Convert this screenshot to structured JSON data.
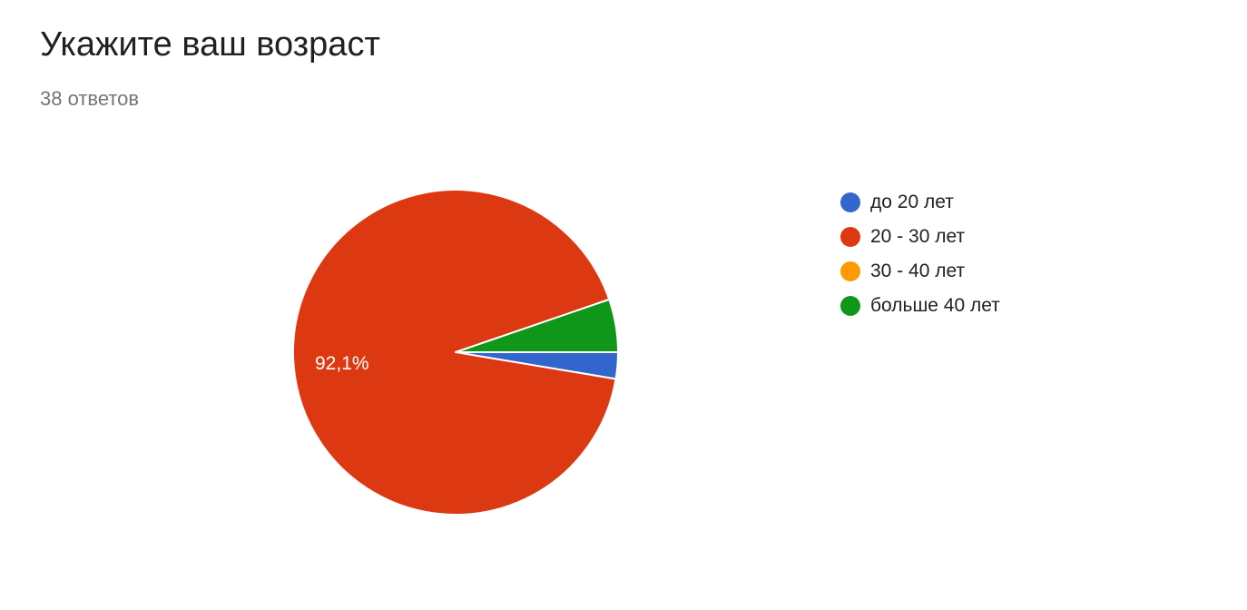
{
  "header": {
    "title": "Укажите ваш возраст",
    "subtitle": "38 ответов"
  },
  "chart_data": {
    "type": "pie",
    "title": "Укажите ваш возраст",
    "subtitle": "38 ответов",
    "legend_position": "right",
    "slices": [
      {
        "label": "до 20 лет",
        "value": 1,
        "percent": 2.6,
        "color": "#3366cc",
        "show_label": false
      },
      {
        "label": "20 - 30 лет",
        "value": 35,
        "percent": 92.1,
        "color": "#dc3912",
        "show_label": true,
        "label_text": "92,1%"
      },
      {
        "label": "30 - 40 лет",
        "value": 0,
        "percent": 0,
        "color": "#ff9900",
        "show_label": false
      },
      {
        "label": "больше 40 лет",
        "value": 2,
        "percent": 5.3,
        "color": "#109618",
        "show_label": false
      }
    ]
  }
}
